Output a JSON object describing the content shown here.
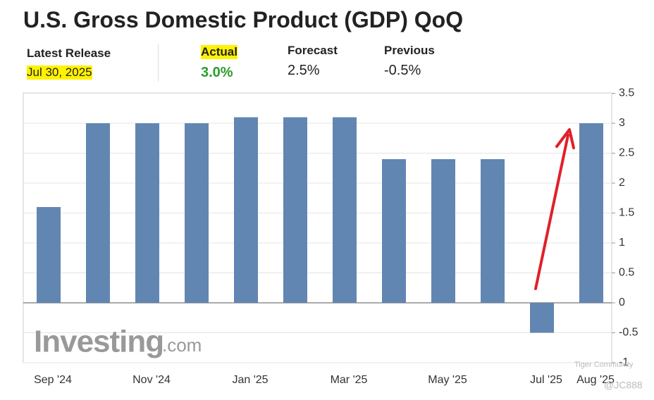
{
  "header": {
    "title": "U.S. Gross Domestic Product (GDP) QoQ",
    "release_label": "Latest Release",
    "release_date": "Jul 30, 2025",
    "actual_label": "Actual",
    "actual_value": "3.0%",
    "forecast_label": "Forecast",
    "forecast_value": "2.5%",
    "previous_label": "Previous",
    "previous_value": "-0.5%"
  },
  "watermarks": {
    "logo": "Investing",
    "logo_suffix": ".com",
    "community": "Tiger Community",
    "handle": "@JC888"
  },
  "chart_data": {
    "type": "bar",
    "categories": [
      "Sep '24",
      null,
      "Nov '24",
      null,
      "Jan '25",
      null,
      "Mar '25",
      null,
      "May '25",
      null,
      "Jul '25",
      "Aug '25"
    ],
    "values": [
      1.6,
      3.0,
      3.0,
      3.0,
      3.1,
      3.1,
      3.1,
      2.4,
      2.4,
      2.4,
      -0.5,
      3.0
    ],
    "color": "#6286b2",
    "ylim": [
      -1,
      3.5
    ],
    "yticks": [
      -1,
      -0.5,
      0,
      0.5,
      1,
      1.5,
      2,
      2.5,
      3,
      3.5
    ],
    "grid": true
  }
}
